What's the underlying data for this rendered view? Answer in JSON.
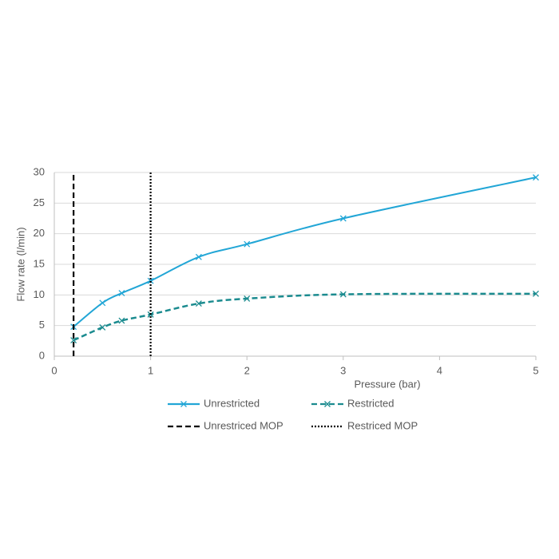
{
  "chart_data": {
    "type": "line",
    "x_label": "Pressure (bar)",
    "y_label": "Flow rate (l/min)",
    "xlim": [
      0,
      5
    ],
    "xticks": [
      0,
      1,
      2,
      3,
      4,
      5
    ],
    "ylim": [
      0,
      30
    ],
    "yticks": [
      0,
      5,
      10,
      15,
      20,
      25,
      30
    ],
    "grid": true,
    "legend": "bottom",
    "series": [
      {
        "name": "Unrestricted",
        "color": "#22a6d6",
        "dash": "solid",
        "marker": "x",
        "smooth": true,
        "x": [
          0.2,
          0.5,
          0.7,
          1,
          1.5,
          2,
          3,
          5
        ],
        "values": [
          4.8,
          8.7,
          10.3,
          12.3,
          16.2,
          18.3,
          22.5,
          29.2
        ]
      },
      {
        "name": "Restricted",
        "color": "#1b8b8f",
        "dash": "dashed",
        "marker": "x",
        "smooth": true,
        "x": [
          0.2,
          0.5,
          0.7,
          1,
          1.5,
          2,
          3,
          5
        ],
        "values": [
          2.6,
          4.7,
          5.8,
          6.8,
          8.6,
          9.4,
          10.1,
          10.2
        ]
      },
      {
        "name": "Unrestriced MOP",
        "color": "#000000",
        "dash": "dashed",
        "marker": null,
        "smooth": false,
        "x": [
          0.2,
          0.2
        ],
        "values": [
          0,
          30
        ]
      },
      {
        "name": "Restriced MOP",
        "color": "#000000",
        "dash": "dotted",
        "marker": null,
        "smooth": false,
        "x": [
          1,
          1
        ],
        "values": [
          0,
          30
        ]
      }
    ]
  }
}
